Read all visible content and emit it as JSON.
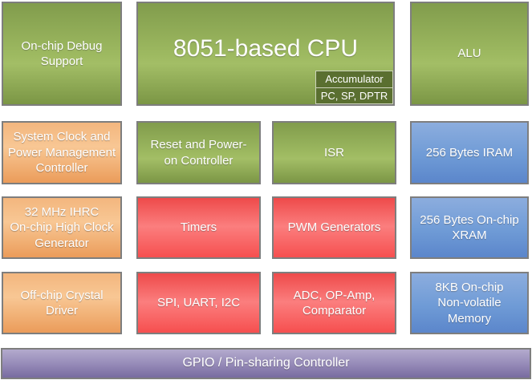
{
  "diagram": {
    "colors": {
      "green_top": "#819c4c",
      "green_mid": "#9eba61",
      "green_bottom": "#7b9645",
      "orange_top": "#f3b67e",
      "orange_mid": "#f8c794",
      "orange_bottom": "#eb9c5a",
      "red_top": "#ee4a4a",
      "red_mid": "#fb7e7e",
      "red_bottom": "#f64f4f",
      "blue_top": "#8cadde",
      "blue_bottom": "#5b86cb",
      "purple_top": "#b3aacd",
      "purple_bottom": "#786ba0",
      "accumulator_fill": "#5a6f30",
      "block_border": "#7e7e7e",
      "text": "#ffffff"
    },
    "blocks": {
      "debug": {
        "label": "On-chip Debug\nSupport"
      },
      "cpu": {
        "label": "8051-based CPU"
      },
      "accumulator": {
        "line1": "Accumulator",
        "line2": "PC, SP, DPTR"
      },
      "alu": {
        "label": "ALU"
      },
      "sysclk": {
        "label": "System Clock and\nPower Management\nController"
      },
      "reset": {
        "label": "Reset and Power-\non Controller"
      },
      "isr": {
        "label": "ISR"
      },
      "iram": {
        "label": "256 Bytes IRAM"
      },
      "ihrc": {
        "label": "32 MHz IHRC\nOn-chip High Clock\nGenerator"
      },
      "timers": {
        "label": "Timers"
      },
      "pwm": {
        "label": "PWM Generators"
      },
      "xram": {
        "label": "256 Bytes On-chip\nXRAM"
      },
      "crystal": {
        "label": "Off-chip Crystal\nDriver"
      },
      "serial": {
        "label": "SPI, UART, I2C"
      },
      "adc": {
        "label": "ADC, OP-Amp,\nComparator"
      },
      "nvm": {
        "label": "8KB On-chip\nNon-volatile\nMemory"
      },
      "gpio": {
        "label": "GPIO / Pin-sharing Controller"
      }
    }
  }
}
